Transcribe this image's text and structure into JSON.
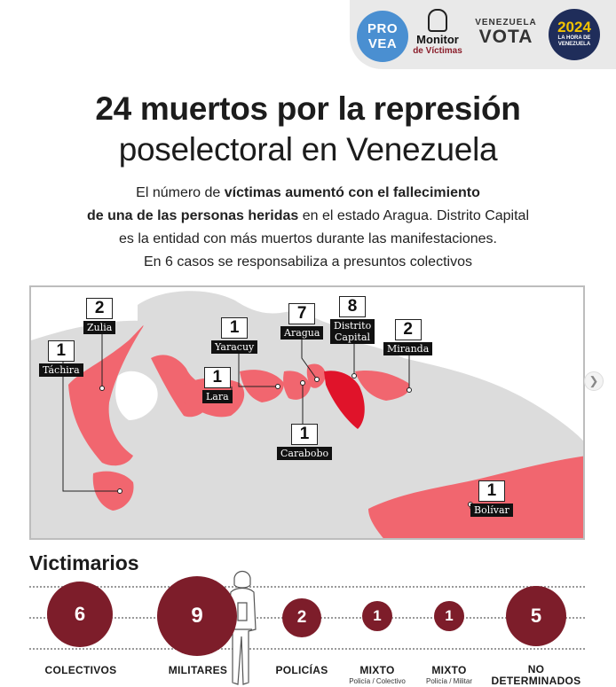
{
  "header": {
    "provea": "PRO VEA",
    "monitor_title": "Monitor",
    "monitor_sub": "de Víctimas",
    "venezuela": "VENEZUELA",
    "vota": "VOTA",
    "hora_year": "2024",
    "hora_text": "LA HORA DE VENEZUELA"
  },
  "title": {
    "line1": "24 muertos por la represión",
    "line2": "poselectoral  en Venezuela"
  },
  "subtitle": {
    "l1_a": "El número de ",
    "l1_b": "víctimas aumentó con el fallecimiento",
    "l2_a": "de una de las personas heridas",
    "l2_b": " en el estado Aragua. ",
    "l2_c": "Distrito Capital",
    "l3": "es la entidad con más muertos durante las manifestaciones.",
    "l4": "En 6 casos se responsabiliza a presuntos colectivos"
  },
  "map_labels": [
    {
      "state": "Táchira",
      "count": "1"
    },
    {
      "state": "Zulia",
      "count": "2"
    },
    {
      "state": "Yaracuy",
      "count": "1"
    },
    {
      "state": "Lara",
      "count": "1"
    },
    {
      "state": "Aragua",
      "count": "7"
    },
    {
      "state": "Distrito Capital",
      "count": "8"
    },
    {
      "state": "Miranda",
      "count": "2"
    },
    {
      "state": "Carabobo",
      "count": "1"
    },
    {
      "state": "Bolívar",
      "count": "1"
    }
  ],
  "victimarios": {
    "title": "Victimarios",
    "items": [
      {
        "value": "6",
        "label": "COLECTIVOS",
        "sub": ""
      },
      {
        "value": "9",
        "label": "MILITARES",
        "sub": ""
      },
      {
        "value": "2",
        "label": "POLICÍAS",
        "sub": ""
      },
      {
        "value": "1",
        "label": "MIXTO",
        "sub": "Policía / Colectivo"
      },
      {
        "value": "1",
        "label": "MIXTO",
        "sub": "Policía / Militar"
      },
      {
        "value": "5",
        "label": "NO",
        "label2": "DETERMINADOS",
        "sub": ""
      }
    ]
  },
  "colors": {
    "accent": "#7d1d2a",
    "state_light": "#f1666f",
    "state_dark": "#e0132a",
    "land": "#dcdcdc",
    "sea": "#ffffff"
  },
  "icons": {
    "next": "chevron-right-icon"
  }
}
